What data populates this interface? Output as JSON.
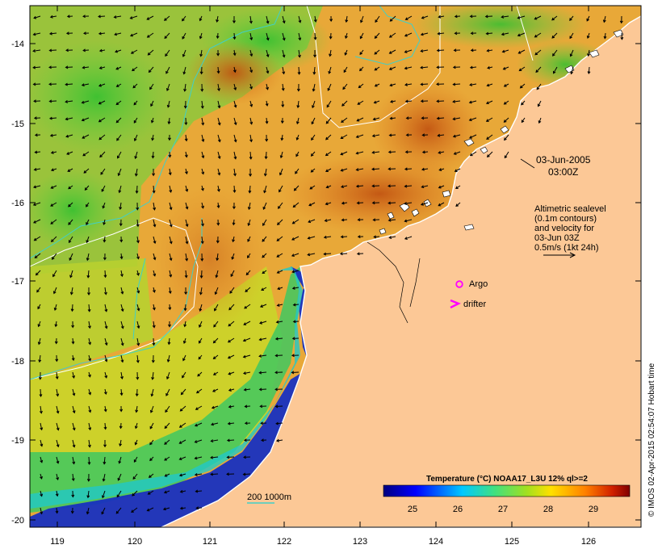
{
  "map": {
    "lon_ticks": [
      "119",
      "120",
      "121",
      "122",
      "123",
      "124",
      "125",
      "126"
    ],
    "lat_ticks": [
      "-14",
      "-15",
      "-16",
      "-17",
      "-18",
      "-19",
      "-20"
    ],
    "date_line1": "03-Jun-2005",
    "date_line2": "03:00Z",
    "legend_lines": [
      "Altimetric sealevel",
      "(0.1m contours)",
      "and velocity for",
      "03-Jun 03Z",
      "0.5m/s (1kt 24h)"
    ],
    "argo_label": "Argo",
    "drifter_label": "drifter",
    "depth_label": "200  1000m",
    "colorbar_title": "Temperature (°C) NOAA17_L3U 12% ql>=2",
    "colorbar_ticks": [
      "25",
      "26",
      "27",
      "28",
      "29"
    ],
    "credit": "© IMOS 02-Apr-2015 02:54:07 Hobart time",
    "colors": {
      "land": "#fcc896",
      "coast": "#ffffff",
      "contour": "#ffffff",
      "isobath": "#40d0c8",
      "argo": "#ff00ff",
      "drifter": "#ff00ff"
    }
  }
}
